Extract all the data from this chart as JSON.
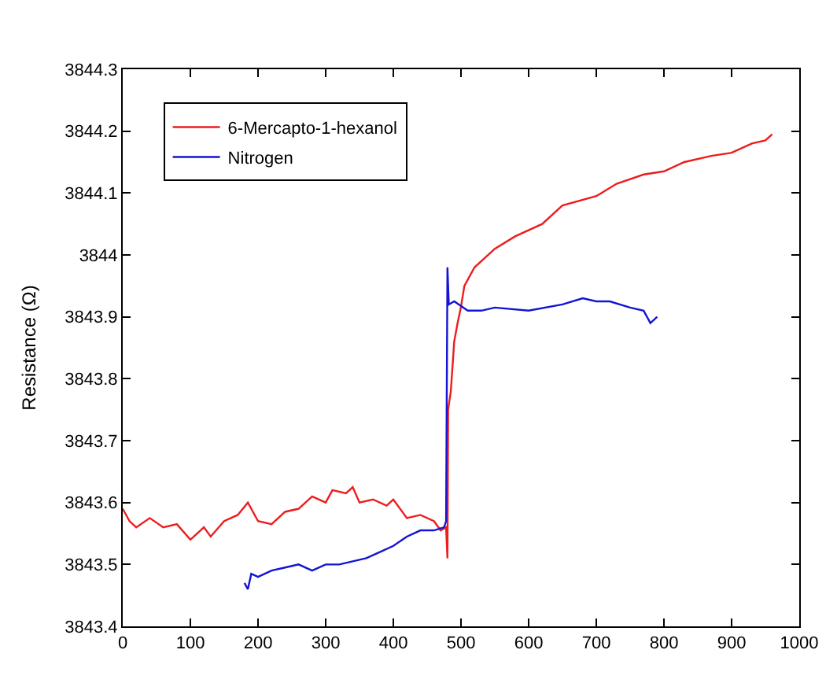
{
  "chart_data": {
    "type": "line",
    "ylabel": "Resistance (Ω)",
    "xlim": [
      0,
      1000
    ],
    "xticks": [
      0,
      100,
      200,
      300,
      400,
      500,
      600,
      700,
      800,
      900,
      1000
    ],
    "ylim": [
      3843.4,
      3844.3
    ],
    "yticks": [
      3843.4,
      3843.5,
      3843.6,
      3843.7,
      3843.8,
      3843.9,
      3844,
      3844.1,
      3844.2,
      3844.3
    ],
    "legend": "top left",
    "marker": "none",
    "line_style": "solid",
    "series": [
      {
        "name": "6-Mercapto-1-hexanol",
        "color": "#ee1c1c",
        "x": [
          0,
          10,
          20,
          40,
          60,
          80,
          100,
          120,
          130,
          150,
          170,
          185,
          200,
          220,
          240,
          260,
          280,
          300,
          310,
          330,
          340,
          350,
          370,
          390,
          400,
          420,
          440,
          460,
          470,
          478,
          480,
          481,
          485,
          490,
          495,
          500,
          505,
          520,
          550,
          580,
          620,
          650,
          700,
          730,
          770,
          800,
          830,
          870,
          900,
          930,
          950,
          960
        ],
        "values": [
          3843.59,
          3843.57,
          3843.56,
          3843.575,
          3843.56,
          3843.565,
          3843.54,
          3843.56,
          3843.545,
          3843.57,
          3843.58,
          3843.6,
          3843.57,
          3843.565,
          3843.585,
          3843.59,
          3843.61,
          3843.6,
          3843.62,
          3843.615,
          3843.625,
          3843.6,
          3843.605,
          3843.595,
          3843.605,
          3843.575,
          3843.58,
          3843.57,
          3843.555,
          3843.56,
          3843.51,
          3843.75,
          3843.78,
          3843.86,
          3843.89,
          3843.916,
          3843.95,
          3843.98,
          3844.01,
          3844.03,
          3844.05,
          3844.08,
          3844.095,
          3844.115,
          3844.13,
          3844.135,
          3844.15,
          3844.16,
          3844.165,
          3844.18,
          3844.185,
          3844.195
        ]
      },
      {
        "name": "Nitrogen",
        "color": "#1414d2",
        "x": [
          180,
          185,
          190,
          200,
          220,
          240,
          260,
          280,
          300,
          320,
          340,
          360,
          380,
          400,
          420,
          440,
          460,
          475,
          478,
          480,
          482,
          490,
          510,
          530,
          550,
          600,
          650,
          680,
          700,
          720,
          750,
          770,
          780,
          790
        ],
        "values": [
          3843.47,
          3843.46,
          3843.485,
          3843.48,
          3843.49,
          3843.495,
          3843.5,
          3843.49,
          3843.5,
          3843.5,
          3843.505,
          3843.51,
          3843.52,
          3843.53,
          3843.545,
          3843.555,
          3843.555,
          3843.56,
          3843.57,
          3843.98,
          3843.92,
          3843.925,
          3843.91,
          3843.91,
          3843.915,
          3843.91,
          3843.92,
          3843.93,
          3843.925,
          3843.925,
          3843.915,
          3843.91,
          3843.89,
          3843.9
        ]
      }
    ]
  }
}
